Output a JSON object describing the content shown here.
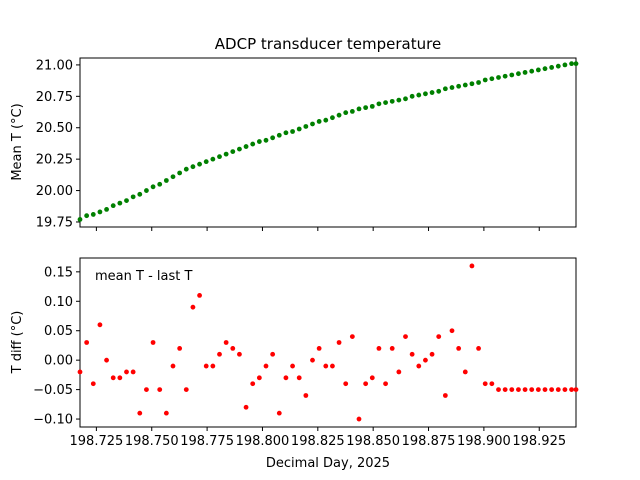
{
  "chart_data": [
    {
      "type": "scatter",
      "title": "ADCP transducer temperature",
      "xlabel": "",
      "ylabel": "Mean T (°C)",
      "xlim": [
        198.7176,
        198.9416
      ],
      "ylim": [
        19.71,
        21.055
      ],
      "yticks": [
        19.75,
        20.0,
        20.25,
        20.5,
        20.75,
        21.0
      ],
      "ytick_labels": [
        "19.75",
        "20.00",
        "20.25",
        "20.50",
        "20.75",
        "21.00"
      ],
      "xticks": [
        198.725,
        198.75,
        198.775,
        198.8,
        198.825,
        198.85,
        198.875,
        198.9,
        198.925
      ],
      "x_tick_labels_shown": false,
      "grid": false,
      "series": [
        {
          "color": "#008000",
          "marker": "dot",
          "x": [
            198.7176,
            198.7206,
            198.7236,
            198.7266,
            198.7296,
            198.7326,
            198.7356,
            198.7386,
            198.7416,
            198.7446,
            198.7476,
            198.7506,
            198.7536,
            198.7566,
            198.7596,
            198.7626,
            198.7656,
            198.7686,
            198.7716,
            198.7746,
            198.7776,
            198.7806,
            198.7836,
            198.7866,
            198.7896,
            198.7926,
            198.7956,
            198.7986,
            198.8016,
            198.8046,
            198.8076,
            198.8106,
            198.8136,
            198.8166,
            198.8196,
            198.8226,
            198.8256,
            198.8286,
            198.8316,
            198.8346,
            198.8376,
            198.8406,
            198.8436,
            198.8466,
            198.8496,
            198.8526,
            198.8556,
            198.8586,
            198.8616,
            198.8646,
            198.8676,
            198.8706,
            198.8736,
            198.8766,
            198.8796,
            198.8826,
            198.8856,
            198.8886,
            198.8916,
            198.8946,
            198.8976,
            198.9006,
            198.9036,
            198.9066,
            198.9096,
            198.9126,
            198.9156,
            198.9186,
            198.9216,
            198.9246,
            198.9276,
            198.9306,
            198.9336,
            198.9366,
            198.9396,
            198.9416
          ],
          "y": [
            19.77,
            19.8,
            19.81,
            19.83,
            19.85,
            19.88,
            19.9,
            19.92,
            19.95,
            19.97,
            20.0,
            20.03,
            20.05,
            20.08,
            20.11,
            20.14,
            20.17,
            20.19,
            20.21,
            20.23,
            20.25,
            20.27,
            20.29,
            20.31,
            20.33,
            20.35,
            20.37,
            20.39,
            20.4,
            20.42,
            20.44,
            20.46,
            20.47,
            20.49,
            20.51,
            20.53,
            20.55,
            20.56,
            20.58,
            20.6,
            20.62,
            20.63,
            20.65,
            20.66,
            20.67,
            20.69,
            20.7,
            20.71,
            20.72,
            20.73,
            20.75,
            20.76,
            20.77,
            20.78,
            20.79,
            20.81,
            20.82,
            20.83,
            20.84,
            20.85,
            20.86,
            20.88,
            20.89,
            20.9,
            20.91,
            20.92,
            20.93,
            20.94,
            20.95,
            20.96,
            20.97,
            20.98,
            20.99,
            21.0,
            21.01,
            21.01
          ]
        }
      ]
    },
    {
      "type": "scatter",
      "title": "",
      "xlabel": "Decimal Day, 2025",
      "ylabel": "T diff (°C)",
      "annotation": "mean T - last T",
      "xlim": [
        198.7176,
        198.9416
      ],
      "ylim": [
        -0.1135,
        0.1735
      ],
      "yticks": [
        -0.1,
        -0.05,
        0.0,
        0.05,
        0.1,
        0.15
      ],
      "ytick_labels": [
        "−0.10",
        "−0.05",
        "0.00",
        "0.05",
        "0.10",
        "0.15"
      ],
      "xticks": [
        198.725,
        198.75,
        198.775,
        198.8,
        198.825,
        198.85,
        198.875,
        198.9,
        198.925
      ],
      "xtick_labels": [
        "198.725",
        "198.750",
        "198.775",
        "198.800",
        "198.825",
        "198.850",
        "198.875",
        "198.900",
        "198.925"
      ],
      "grid": false,
      "series": [
        {
          "color": "#ff0000",
          "marker": "dot",
          "x": [
            198.7176,
            198.7206,
            198.7236,
            198.7266,
            198.7296,
            198.7326,
            198.7356,
            198.7386,
            198.7416,
            198.7446,
            198.7476,
            198.7506,
            198.7536,
            198.7566,
            198.7596,
            198.7626,
            198.7656,
            198.7686,
            198.7716,
            198.7746,
            198.7776,
            198.7806,
            198.7836,
            198.7866,
            198.7896,
            198.7926,
            198.7956,
            198.7986,
            198.8016,
            198.8046,
            198.8076,
            198.8106,
            198.8136,
            198.8166,
            198.8196,
            198.8226,
            198.8256,
            198.8286,
            198.8316,
            198.8346,
            198.8376,
            198.8406,
            198.8436,
            198.8466,
            198.8496,
            198.8526,
            198.8556,
            198.8586,
            198.8616,
            198.8646,
            198.8676,
            198.8706,
            198.8736,
            198.8766,
            198.8796,
            198.8826,
            198.8856,
            198.8886,
            198.8916,
            198.8946,
            198.8976,
            198.9006,
            198.9036,
            198.9066,
            198.9096,
            198.9126,
            198.9156,
            198.9186,
            198.9216,
            198.9246,
            198.9276,
            198.9306,
            198.9336,
            198.9366,
            198.9396,
            198.9416
          ],
          "y": [
            -0.02,
            0.03,
            -0.04,
            0.06,
            0.0,
            -0.03,
            -0.03,
            -0.02,
            -0.02,
            -0.09,
            -0.05,
            0.03,
            -0.05,
            -0.09,
            -0.01,
            0.02,
            -0.05,
            0.09,
            0.11,
            -0.01,
            -0.01,
            0.01,
            0.03,
            0.02,
            0.01,
            -0.08,
            -0.04,
            -0.03,
            -0.01,
            0.01,
            -0.09,
            -0.03,
            -0.01,
            -0.03,
            -0.06,
            0.0,
            0.02,
            -0.01,
            -0.01,
            0.03,
            -0.04,
            0.04,
            -0.1,
            -0.04,
            -0.03,
            0.02,
            -0.04,
            0.02,
            -0.02,
            0.04,
            0.01,
            -0.01,
            0.0,
            0.01,
            0.04,
            -0.06,
            0.05,
            0.02,
            -0.02,
            0.16,
            0.02,
            -0.04,
            -0.04,
            -0.05,
            -0.05,
            -0.05,
            -0.05,
            -0.05,
            -0.05,
            -0.05,
            -0.05,
            -0.05,
            -0.05,
            -0.05,
            -0.05,
            -0.05
          ]
        }
      ]
    }
  ]
}
